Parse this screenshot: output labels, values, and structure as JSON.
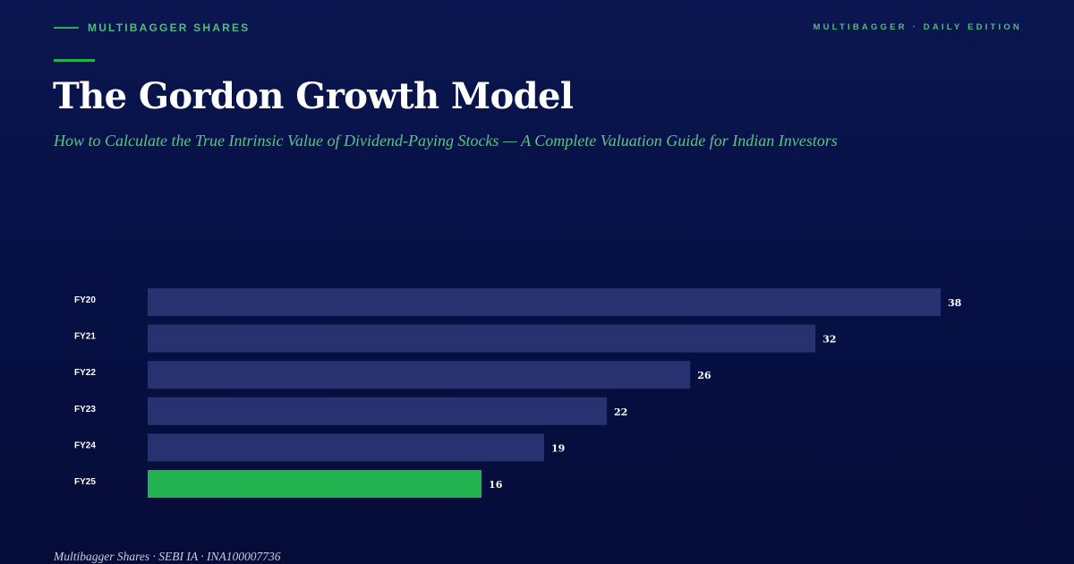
{
  "header": {
    "brand": "MULTIBAGGER SHARES",
    "edition": "MULTIBAGGER · DAILY EDITION"
  },
  "title": "The Gordon Growth Model",
  "subtitle": "How to Calculate the True Intrinsic Value of Dividend-Paying Stocks — A Complete Valuation Guide for Indian Investors",
  "footer": {
    "credit": "Multibagger Shares · SEBI IA · INA100007736"
  },
  "colors": {
    "bar": "#283270",
    "highlight": "#22b24f",
    "accent": "#4fbf7c"
  },
  "chart_data": {
    "type": "bar",
    "orientation": "horizontal",
    "categories": [
      "FY20",
      "FY21",
      "FY22",
      "FY23",
      "FY24",
      "FY25"
    ],
    "values": [
      38,
      32,
      26,
      22,
      19,
      16
    ],
    "highlight_index": 5,
    "xlim": [
      0,
      38
    ],
    "grid": false,
    "legend": "none"
  }
}
